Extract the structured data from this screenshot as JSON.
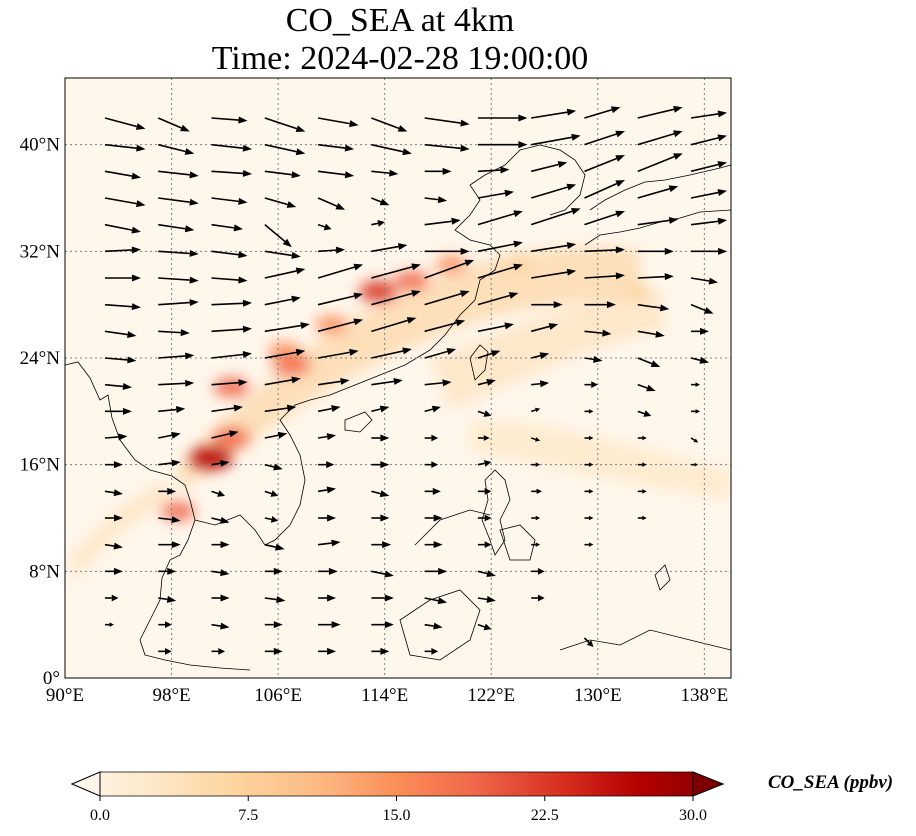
{
  "title": {
    "line1": "CO_SEA at 4km",
    "line2": "Time: 2024-02-28 19:00:00"
  },
  "map": {
    "projection": "PlateCarree",
    "extent": {
      "lon": [
        90,
        140
      ],
      "lat": [
        0,
        45
      ]
    },
    "lon_ticks": [
      {
        "value": 90,
        "label": "90°E"
      },
      {
        "value": 98,
        "label": "98°E"
      },
      {
        "value": 106,
        "label": "106°E"
      },
      {
        "value": 114,
        "label": "114°E"
      },
      {
        "value": 122,
        "label": "122°E"
      },
      {
        "value": 130,
        "label": "130°E"
      },
      {
        "value": 138,
        "label": "138°E"
      }
    ],
    "lat_ticks": [
      {
        "value": 0,
        "label": "0°"
      },
      {
        "value": 8,
        "label": "8°N"
      },
      {
        "value": 16,
        "label": "16°N"
      },
      {
        "value": 24,
        "label": "24°N"
      },
      {
        "value": 32,
        "label": "32°N"
      },
      {
        "value": 40,
        "label": "40°N"
      }
    ],
    "gridlines": true,
    "coastlines": true
  },
  "colorbar": {
    "title": "CO_SEA (ppbv)",
    "colormap": "OrRd",
    "min": 0,
    "max": 30,
    "extend": "both",
    "ticks": [
      "0.0",
      "7.5",
      "15.0",
      "22.5",
      "30.0"
    ],
    "colors": [
      "#fff7ec",
      "#fee8c8",
      "#fdd49e",
      "#fdbb84",
      "#fc8d59",
      "#ef6548",
      "#d7301f",
      "#b30000",
      "#7f0000"
    ]
  },
  "field": {
    "background_color": "#fff7ec",
    "plumes": [
      {
        "lon": 101,
        "lat": 16.5,
        "value": 28
      },
      {
        "lon": 102.5,
        "lat": 18,
        "value": 20
      },
      {
        "lon": 102.5,
        "lat": 21.8,
        "value": 19
      },
      {
        "lon": 107,
        "lat": 23.5,
        "value": 20
      },
      {
        "lon": 106.5,
        "lat": 24.5,
        "value": 16
      },
      {
        "lon": 110,
        "lat": 26.5,
        "value": 16
      },
      {
        "lon": 113.5,
        "lat": 29,
        "value": 22
      },
      {
        "lon": 116,
        "lat": 29.8,
        "value": 18
      },
      {
        "lon": 119,
        "lat": 31,
        "value": 14
      },
      {
        "lon": 98.5,
        "lat": 12.5,
        "value": 17
      },
      {
        "lon": 124,
        "lat": 31,
        "value": 9
      },
      {
        "lon": 133,
        "lat": 29,
        "value": 8
      }
    ]
  },
  "wind": {
    "vectors": [
      [
        93,
        42,
        4.5,
        -1.2
      ],
      [
        97,
        42,
        3.5,
        -1.5
      ],
      [
        101,
        42,
        4,
        -0.3
      ],
      [
        105,
        42,
        4.5,
        -1.5
      ],
      [
        109,
        42,
        4.5,
        -0.8
      ],
      [
        113,
        42,
        4,
        -1.5
      ],
      [
        117,
        42,
        5,
        -0.7
      ],
      [
        121,
        42,
        5.5,
        0
      ],
      [
        125,
        42,
        5,
        0.8
      ],
      [
        129,
        42,
        4,
        1.2
      ],
      [
        133,
        42,
        5,
        1.2
      ],
      [
        137,
        42,
        4,
        0.6
      ],
      [
        93,
        40,
        4.5,
        -0.5
      ],
      [
        97,
        40,
        4,
        -1
      ],
      [
        101,
        40,
        4.5,
        -0.5
      ],
      [
        105,
        40,
        4.5,
        -1
      ],
      [
        109,
        40,
        4,
        -0.5
      ],
      [
        113,
        40,
        4.5,
        -1
      ],
      [
        117,
        40,
        5,
        -0.5
      ],
      [
        121,
        40,
        5.5,
        0
      ],
      [
        125,
        40,
        5.5,
        1
      ],
      [
        129,
        40,
        4.5,
        1.5
      ],
      [
        133,
        40,
        5,
        1.5
      ],
      [
        137,
        40,
        4,
        1
      ],
      [
        93,
        38,
        4,
        -0.7
      ],
      [
        97,
        38,
        4.5,
        -0.5
      ],
      [
        101,
        38,
        4.5,
        -0.3
      ],
      [
        105,
        38,
        4,
        -0.5
      ],
      [
        109,
        38,
        4,
        -0.5
      ],
      [
        113,
        38,
        3,
        -0.3
      ],
      [
        117,
        38,
        3,
        0
      ],
      [
        121,
        38,
        3.5,
        0.2
      ],
      [
        125,
        38,
        4,
        1
      ],
      [
        129,
        38,
        4.5,
        1.8
      ],
      [
        133,
        38,
        5,
        2
      ],
      [
        137,
        38,
        4,
        1
      ],
      [
        93,
        36,
        4.5,
        -0.8
      ],
      [
        97,
        36,
        4.5,
        -0.6
      ],
      [
        101,
        36,
        4,
        -0.5
      ],
      [
        105,
        36,
        3.5,
        -1
      ],
      [
        109,
        36,
        3,
        -1.3
      ],
      [
        113,
        36,
        2,
        -0.8
      ],
      [
        117,
        36,
        2.5,
        -0.3
      ],
      [
        121,
        36,
        4,
        0.7
      ],
      [
        125,
        36,
        5,
        1.5
      ],
      [
        129,
        36,
        4.5,
        2
      ],
      [
        133,
        36,
        4.5,
        1.3
      ],
      [
        137,
        36,
        4,
        0.8
      ],
      [
        93,
        34,
        4,
        -0.8
      ],
      [
        97,
        34,
        4,
        -0.6
      ],
      [
        101,
        34,
        3.5,
        -0.5
      ],
      [
        105,
        34,
        3,
        -2.5
      ],
      [
        109,
        34,
        1.5,
        -0.5
      ],
      [
        113,
        34,
        1.5,
        0.3
      ],
      [
        117,
        34,
        4,
        0.5
      ],
      [
        121,
        34,
        5,
        1.5
      ],
      [
        125,
        34,
        5.5,
        1.8
      ],
      [
        129,
        34,
        4.5,
        1.5
      ],
      [
        133,
        34,
        4.5,
        0.6
      ],
      [
        137,
        34,
        4,
        0.5
      ],
      [
        93,
        32,
        4,
        0.2
      ],
      [
        97,
        32,
        4.5,
        -0.3
      ],
      [
        101,
        32,
        4,
        -0.5
      ],
      [
        105,
        32,
        4,
        -0.6
      ],
      [
        109,
        32,
        3,
        0.2
      ],
      [
        113,
        32,
        4,
        0.7
      ],
      [
        117,
        32,
        5,
        0
      ],
      [
        121,
        32,
        5,
        1
      ],
      [
        125,
        32,
        5,
        0.8
      ],
      [
        129,
        32,
        4.5,
        0.2
      ],
      [
        133,
        32,
        4,
        0
      ],
      [
        137,
        32,
        4,
        0
      ],
      [
        93,
        30,
        4,
        0
      ],
      [
        97,
        30,
        4.5,
        -0.3
      ],
      [
        101,
        30,
        4,
        -0.3
      ],
      [
        105,
        30,
        4.5,
        1
      ],
      [
        109,
        30,
        5,
        1.5
      ],
      [
        113,
        30,
        5.5,
        1.5
      ],
      [
        117,
        30,
        5.5,
        2
      ],
      [
        121,
        30,
        5,
        1.5
      ],
      [
        125,
        30,
        5,
        0.8
      ],
      [
        129,
        30,
        4.5,
        0.3
      ],
      [
        133,
        30,
        4,
        0.2
      ],
      [
        137,
        30,
        3,
        -0.5
      ],
      [
        93,
        28,
        4,
        -0.3
      ],
      [
        97,
        28,
        4.5,
        0.3
      ],
      [
        101,
        28,
        4.5,
        0.2
      ],
      [
        105,
        28,
        4,
        0.8
      ],
      [
        109,
        28,
        5,
        1.2
      ],
      [
        113,
        28,
        5.5,
        1.5
      ],
      [
        117,
        28,
        5,
        1.5
      ],
      [
        121,
        28,
        4.5,
        1.3
      ],
      [
        125,
        28,
        3.5,
        0
      ],
      [
        129,
        28,
        3.5,
        0
      ],
      [
        133,
        28,
        3.5,
        -0.5
      ],
      [
        137,
        28,
        2.5,
        -1
      ],
      [
        93,
        26,
        3.5,
        -0.5
      ],
      [
        97,
        26,
        3.5,
        -0.2
      ],
      [
        101,
        26,
        4.5,
        0.3
      ],
      [
        105,
        26,
        5,
        0.8
      ],
      [
        109,
        26,
        5,
        1.3
      ],
      [
        113,
        26,
        5,
        1.5
      ],
      [
        117,
        26,
        4.5,
        1.2
      ],
      [
        121,
        26,
        4,
        0.8
      ],
      [
        125,
        26,
        3,
        0.8
      ],
      [
        129,
        26,
        3,
        -0.3
      ],
      [
        133,
        26,
        3,
        -0.5
      ],
      [
        137,
        26,
        2,
        0
      ],
      [
        93,
        24,
        3.5,
        -0.3
      ],
      [
        97,
        24,
        4,
        0.3
      ],
      [
        101,
        24,
        4.5,
        0.5
      ],
      [
        105,
        24,
        4.5,
        0.8
      ],
      [
        109,
        24,
        4.5,
        0.8
      ],
      [
        113,
        24,
        4.5,
        1
      ],
      [
        117,
        24,
        3.5,
        1
      ],
      [
        121,
        24,
        2.5,
        0.8
      ],
      [
        125,
        24,
        2,
        0.5
      ],
      [
        129,
        24,
        2,
        -0.3
      ],
      [
        133,
        24,
        2.5,
        -1
      ],
      [
        137,
        24,
        2,
        -0.5
      ],
      [
        93,
        22,
        3,
        -0.3
      ],
      [
        97,
        22,
        4,
        0.2
      ],
      [
        101,
        22,
        4,
        0.3
      ],
      [
        105,
        22,
        4,
        0.7
      ],
      [
        109,
        22,
        3.5,
        0.5
      ],
      [
        113,
        22,
        3.5,
        0.5
      ],
      [
        117,
        22,
        3,
        0.3
      ],
      [
        121,
        22,
        2,
        0.5
      ],
      [
        125,
        22,
        2,
        0.2
      ],
      [
        129,
        22,
        1.5,
        0
      ],
      [
        133,
        22,
        2,
        -0.7
      ],
      [
        137,
        22,
        1,
        0
      ],
      [
        93,
        20,
        3,
        0
      ],
      [
        97,
        20,
        3,
        0.3
      ],
      [
        101,
        20,
        3.5,
        0.5
      ],
      [
        105,
        20,
        3.5,
        0.5
      ],
      [
        109,
        20,
        2.5,
        0.5
      ],
      [
        113,
        20,
        2,
        0.5
      ],
      [
        117,
        20,
        1.8,
        0.5
      ],
      [
        121,
        20,
        1.5,
        -0.5
      ],
      [
        125,
        20,
        1,
        0.3
      ],
      [
        129,
        20,
        1,
        0
      ],
      [
        133,
        20,
        1.5,
        -0.5
      ],
      [
        137,
        20,
        1,
        0
      ],
      [
        93,
        18,
        2.5,
        0.2
      ],
      [
        97,
        18,
        2.5,
        0.5
      ],
      [
        101,
        18,
        3,
        0.7
      ],
      [
        105,
        18,
        2.5,
        0.5
      ],
      [
        109,
        18,
        2,
        0.3
      ],
      [
        113,
        18,
        2,
        0
      ],
      [
        117,
        18,
        1.5,
        0
      ],
      [
        121,
        18,
        1.3,
        0
      ],
      [
        125,
        18,
        1,
        -0.3
      ],
      [
        129,
        18,
        1,
        0
      ],
      [
        133,
        18,
        1,
        0
      ],
      [
        137,
        18,
        0.8,
        -0.5
      ],
      [
        93,
        16,
        2,
        0
      ],
      [
        97,
        16,
        2.5,
        0.3
      ],
      [
        101,
        16,
        2,
        0.3
      ],
      [
        105,
        16,
        2,
        -0.5
      ],
      [
        109,
        16,
        1.8,
        0
      ],
      [
        113,
        16,
        2,
        0
      ],
      [
        117,
        16,
        1.5,
        0
      ],
      [
        121,
        16,
        1.5,
        0.3
      ],
      [
        125,
        16,
        1,
        0
      ],
      [
        129,
        16,
        1,
        0
      ],
      [
        133,
        16,
        1,
        0
      ],
      [
        137,
        16,
        0.8,
        0
      ],
      [
        93,
        14,
        2,
        -0.3
      ],
      [
        97,
        14,
        2,
        0
      ],
      [
        101,
        14,
        1.5,
        -0.5
      ],
      [
        105,
        14,
        1.5,
        -0.5
      ],
      [
        109,
        14,
        2,
        0.3
      ],
      [
        113,
        14,
        2,
        -0.5
      ],
      [
        117,
        14,
        1.8,
        0
      ],
      [
        121,
        14,
        1.5,
        0
      ],
      [
        125,
        14,
        1.2,
        0
      ],
      [
        129,
        14,
        1,
        0
      ],
      [
        133,
        14,
        1,
        0
      ],
      [
        93,
        12,
        2,
        0
      ],
      [
        97,
        12,
        2.5,
        -0.3
      ],
      [
        101,
        12,
        2,
        -0.5
      ],
      [
        105,
        12,
        1.5,
        -0.3
      ],
      [
        109,
        12,
        2,
        0
      ],
      [
        113,
        12,
        2,
        0
      ],
      [
        117,
        12,
        2,
        0
      ],
      [
        121,
        12,
        1.5,
        0
      ],
      [
        125,
        12,
        1,
        0
      ],
      [
        129,
        12,
        1,
        0
      ],
      [
        133,
        12,
        1,
        0
      ],
      [
        93,
        10,
        2,
        -0.3
      ],
      [
        97,
        10,
        2.5,
        0
      ],
      [
        101,
        10,
        2,
        0
      ],
      [
        105,
        10,
        2.2,
        -0.5
      ],
      [
        109,
        10,
        2.5,
        0.3
      ],
      [
        113,
        10,
        2.2,
        0
      ],
      [
        117,
        10,
        2,
        0
      ],
      [
        121,
        10,
        1.5,
        0
      ],
      [
        125,
        10,
        1,
        0
      ],
      [
        129,
        10,
        1,
        0
      ],
      [
        93,
        8,
        2,
        0
      ],
      [
        97,
        8,
        2,
        0
      ],
      [
        101,
        8,
        2,
        -0.3
      ],
      [
        105,
        8,
        2,
        0
      ],
      [
        109,
        8,
        2.2,
        0
      ],
      [
        113,
        8,
        2.5,
        -0.5
      ],
      [
        117,
        8,
        2.5,
        0
      ],
      [
        121,
        8,
        2,
        -0.5
      ],
      [
        125,
        8,
        1.5,
        0
      ],
      [
        93,
        6,
        1.5,
        0
      ],
      [
        97,
        6,
        2,
        -0.3
      ],
      [
        101,
        6,
        2,
        0
      ],
      [
        105,
        6,
        2.3,
        -0.3
      ],
      [
        109,
        6,
        2,
        0
      ],
      [
        113,
        6,
        2.5,
        0
      ],
      [
        117,
        6,
        2.5,
        -0.5
      ],
      [
        121,
        6,
        2,
        -0.3
      ],
      [
        125,
        6,
        1.5,
        0
      ],
      [
        93,
        4,
        1,
        0
      ],
      [
        97,
        4,
        1.5,
        0
      ],
      [
        101,
        4,
        2,
        -0.3
      ],
      [
        105,
        4,
        2,
        0
      ],
      [
        109,
        4,
        2.5,
        0
      ],
      [
        113,
        4,
        2.5,
        0
      ],
      [
        117,
        4,
        2,
        -0.3
      ],
      [
        121,
        4,
        1.5,
        -0.5
      ],
      [
        129,
        3,
        1,
        -1
      ],
      [
        97,
        2,
        1.5,
        0
      ],
      [
        101,
        2,
        1.5,
        0
      ],
      [
        105,
        2,
        2,
        0
      ],
      [
        109,
        2,
        2,
        0
      ],
      [
        113,
        2,
        2,
        0
      ],
      [
        117,
        2,
        1.5,
        0
      ]
    ]
  }
}
